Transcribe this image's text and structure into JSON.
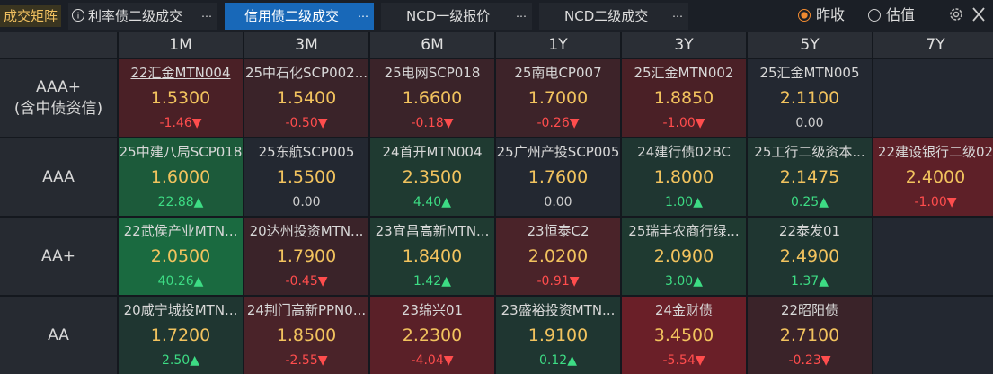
{
  "toolbar": {
    "title": "成交矩阵",
    "tabs": [
      "利率债二级成交",
      "信用债二级成交",
      "NCD一级报价",
      "NCD二级成交"
    ],
    "active_tab": 1,
    "options": [
      "昨收",
      "估值"
    ],
    "selected_option": 0
  },
  "matrix": {
    "columns": [
      "1M",
      "3M",
      "6M",
      "1Y",
      "3Y",
      "5Y",
      "7Y"
    ],
    "rows": [
      {
        "label": "AAA+",
        "sublabel": "(含中债资信)",
        "cells": [
          {
            "name": "22汇金MTN004",
            "price": "1.5300",
            "change": "-1.46▼"
          },
          {
            "name": "25中石化SCP002...",
            "price": "1.5400",
            "change": "-0.50▼"
          },
          {
            "name": "25电网SCP018",
            "price": "1.6600",
            "change": "-0.18▼"
          },
          {
            "name": "25南电CP007",
            "price": "1.7000",
            "change": "-0.26▼"
          },
          {
            "name": "25汇金MTN002",
            "price": "1.8850",
            "change": "-1.00▼"
          },
          {
            "name": "25汇金MTN005",
            "price": "2.1100",
            "change": "0.00"
          },
          null
        ]
      },
      {
        "label": "AAA",
        "cells": [
          {
            "name": "25中建八局SCP018",
            "price": "1.6000",
            "change": "22.88▲"
          },
          {
            "name": "25东航SCP005",
            "price": "1.5500",
            "change": "0.00"
          },
          {
            "name": "24首开MTN004",
            "price": "2.3500",
            "change": "4.40▲"
          },
          {
            "name": "25广州产投SCP005",
            "price": "1.7600",
            "change": "0.00"
          },
          {
            "name": "24建行债02BC",
            "price": "1.8000",
            "change": "1.00▲"
          },
          {
            "name": "25工行二级资本...",
            "price": "2.1475",
            "change": "0.25▲"
          },
          {
            "name": "22建设银行二级02",
            "price": "2.4000",
            "change": "-1.00▼"
          }
        ]
      },
      {
        "label": "AA+",
        "cells": [
          {
            "name": "22武侯产业MTN...",
            "price": "2.0500",
            "change": "40.26▲"
          },
          {
            "name": "20达州投资MTN...",
            "price": "1.7900",
            "change": "-0.45▼"
          },
          {
            "name": "23宜昌高新MTN...",
            "price": "1.8400",
            "change": "1.42▲"
          },
          {
            "name": "23恒泰C2",
            "price": "2.0200",
            "change": "-0.91▼"
          },
          {
            "name": "25瑞丰农商行绿...",
            "price": "2.0900",
            "change": "3.00▲"
          },
          {
            "name": "22泰发01",
            "price": "2.4900",
            "change": "1.37▲"
          },
          null
        ]
      },
      {
        "label": "AA",
        "cells": [
          {
            "name": "20咸宁城投MTN...",
            "price": "1.7200",
            "change": "2.50▲"
          },
          {
            "name": "24荆门高新PPN0...",
            "price": "1.8500",
            "change": "-2.55▼"
          },
          {
            "name": "23绵兴01",
            "price": "2.2300",
            "change": "-4.04▼"
          },
          {
            "name": "23盛裕投资MTN...",
            "price": "1.9100",
            "change": "0.12▲"
          },
          {
            "name": "24金财债",
            "price": "3.4500",
            "change": "-5.54▼"
          },
          {
            "name": "22昭阳债",
            "price": "2.7100",
            "change": "-0.23▼"
          },
          null
        ]
      }
    ]
  }
}
